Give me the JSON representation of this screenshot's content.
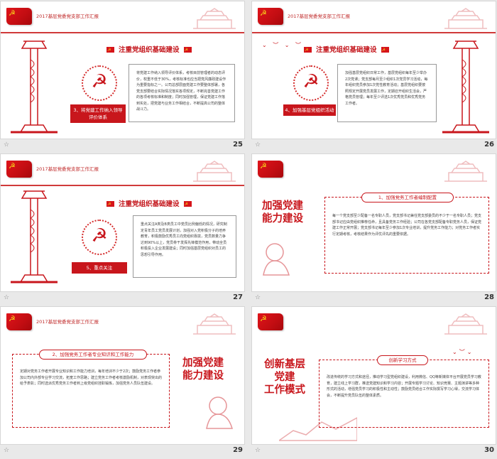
{
  "header_title": "2017基层党委党支部工作汇报",
  "slides": [
    {
      "number": "25",
      "section_title": "注重党组织基础建设",
      "label": "3、将党建工作纳入领导评价体系",
      "body": "将党建工作纳入领导评价体系，考核目前管理者的动态评价，权重不低于30%，考核标准也应当把党风廉政建设作为重要指标之一。公司总部层面党建工作要整体部署，各党支部要结合实际情况落实各项规定，不断完善党建工作的各项考核标准和制度；同时加强管理，保证党建工作落到实处，把党建与业务工作相结合，不断提高公司的整体战斗力。"
    },
    {
      "number": "26",
      "section_title": "注重党组织基础建设",
      "label": "4、加强基层党组织活动",
      "body": "加强基层党组织日常工作，基层党组织每年至少举办2次党课；党支部每月至少组织1次党员学习活动，每年组织党员参加1次党性教育活动；基层党组织要按照规定开展党员发展工作，定期召开组织生活会，严格党员管理；每年至少评选1次优秀党员和优秀党务工作者。"
    },
    {
      "number": "27",
      "section_title": "注重党组织基础建设",
      "label": "5、重点关注",
      "body": "重点关注A类及B类员工中党员比例偏低的情况，研究制定青年员工党员发展计划，加强对入党积极分子的培养教育，积极鼓励优秀员工向党组织靠拢，党员数量力争达到90%以上，党员骨干发挥先锋模范作用，带动全员积极投入企业发展建设；同时加强基层党组织对员工的思想引导作用。"
    },
    {
      "number": "28",
      "big_title_lines": [
        "加强党建",
        "能力建设"
      ],
      "pill": "1、加强党务工作者编制配置",
      "body": "每一个党支部至少配备一名专职人员，党支部书记兼任党支部委员的不少于一名专职人员；党支部书记应由党组织推荐任命，且具备党务工作经验；公司在各党支部配备专职党务人员，保证党建工作正常开展；党支部书记每年至少参加1次专业培训，提升党务工作能力；对党务工作者实行定期考核，考核结果作为评优评先的重要依据。"
    },
    {
      "number": "29",
      "big_title_lines": [
        "加强党建",
        "能力建设"
      ],
      "pill": "2、加强党务工作者专业知识和工作能力",
      "body": "定期对党务工作者开展专业知识和工作能力培训，每年培训不少于2次；鼓励党务工作者参加公司内外部专业学习交流，拓宽工作思路；建立党务工作者考核激励机制，对表现突出的给予表彰；同时选派优秀党务工作者到上级党组织挂职锻炼，加强党务人员队伍建设。"
    },
    {
      "number": "30",
      "big_title_lines": [
        "创新基层",
        "党建",
        "工作模式"
      ],
      "pill": "创新学习方式",
      "body": "改进传统的学习方式和途径，推动学习型党组织建设，利用微信、QQ等新媒体平台开展党员学习教育，建立线上学习群，推送党建知识和学习内容；开展专题学习讨论、知识竞赛、主题演讲等多种形式的活动，增强党员学习的积极性和主动性；鼓励党员结合工作实际撰写学习心得，交流学习体会，不断提升党员队伍的整体素质。"
    }
  ],
  "icons": {
    "flag": "party-flag-icon",
    "emblem": "hammer-sickle-icon",
    "footer": "star-icon"
  },
  "colors": {
    "red": "#c8161c",
    "accent": "#d03a3a",
    "bg": "#e9e9e9"
  }
}
